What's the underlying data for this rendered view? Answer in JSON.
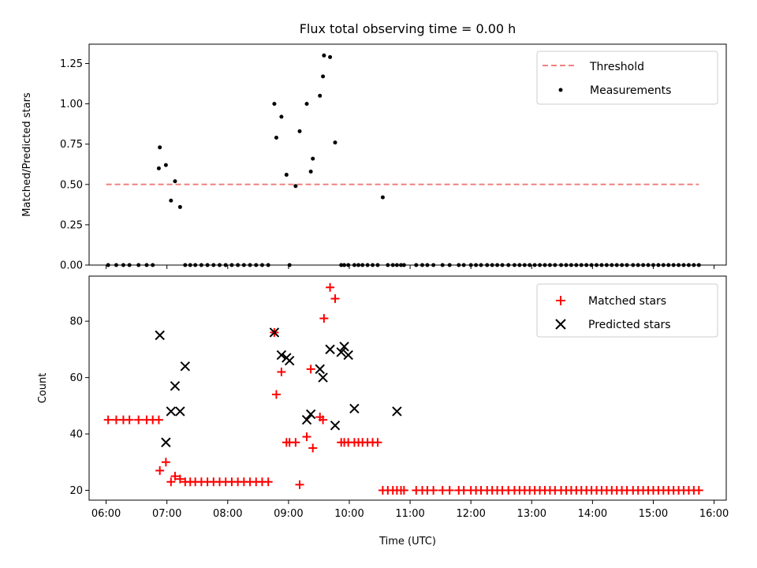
{
  "title": "Flux total observing time = 0.00 h",
  "xlabel": "Time (UTC)",
  "x_ticks": [
    "06:00",
    "07:00",
    "08:00",
    "09:00",
    "10:00",
    "11:00",
    "12:00",
    "13:00",
    "14:00",
    "15:00",
    "16:00"
  ],
  "colors": {
    "threshold": "#f08080",
    "measurement": "#000000",
    "matched": "#ff0000",
    "predicted": "#000000"
  },
  "chart_data": [
    {
      "type": "scatter",
      "ylabel": "Matched/Predicted stars",
      "xlim_hours": [
        5.72,
        16.2
      ],
      "ylim": [
        0,
        1.37
      ],
      "y_ticks": [
        "0.00",
        "0.25",
        "0.50",
        "0.75",
        "1.00",
        "1.25"
      ],
      "y_tick_values": [
        0,
        0.25,
        0.5,
        0.75,
        1.0,
        1.25
      ],
      "legend": {
        "position": "top-right",
        "entries": [
          "Threshold",
          "Measurements"
        ]
      },
      "threshold": {
        "name": "Threshold",
        "y": 0.5,
        "x_range": [
          "06:00",
          "15:45"
        ]
      },
      "series": [
        {
          "name": "Measurements",
          "x": [
            "06:02",
            "06:10",
            "06:17",
            "06:23",
            "06:32",
            "06:40",
            "06:46",
            "06:52",
            "06:53",
            "06:59",
            "07:04",
            "07:08",
            "07:13",
            "07:18",
            "07:23",
            "07:28",
            "07:34",
            "07:40",
            "07:46",
            "07:52",
            "07:58",
            "08:04",
            "08:10",
            "08:16",
            "08:22",
            "08:28",
            "08:34",
            "08:40",
            "08:46",
            "08:48",
            "08:53",
            "08:58",
            "09:01",
            "09:07",
            "09:11",
            "09:18",
            "09:22",
            "09:24",
            "09:31",
            "09:34",
            "09:35",
            "09:41",
            "09:46",
            "09:52",
            "09:55",
            "09:59",
            "10:05",
            "10:09",
            "10:13",
            "10:18",
            "10:23",
            "10:28",
            "10:33",
            "10:38",
            "10:43",
            "10:47",
            "10:51",
            "10:54",
            "11:06",
            "11:12",
            "11:17",
            "11:23",
            "11:32",
            "11:39",
            "11:48",
            "11:53",
            "12:00",
            "12:05",
            "12:10",
            "12:16",
            "12:21",
            "12:26",
            "12:31",
            "12:37",
            "12:43",
            "12:48",
            "12:53",
            "12:58",
            "13:03",
            "13:08",
            "13:13",
            "13:18",
            "13:23",
            "13:29",
            "13:34",
            "13:39",
            "13:44",
            "13:49",
            "13:54",
            "13:59",
            "14:04",
            "14:09",
            "14:14",
            "14:19",
            "14:24",
            "14:29",
            "14:34",
            "14:40",
            "14:45",
            "14:50",
            "14:55",
            "15:00",
            "15:05",
            "15:10",
            "15:15",
            "15:20",
            "15:25",
            "15:30",
            "15:35",
            "15:40",
            "15:45"
          ],
          "y": [
            0,
            0,
            0,
            0,
            0,
            0,
            0,
            0.6,
            0.73,
            0.62,
            0.4,
            0.52,
            0.36,
            0,
            0,
            0,
            0,
            0,
            0,
            0,
            0,
            0,
            0,
            0,
            0,
            0,
            0,
            0,
            1.0,
            0.79,
            0.92,
            0.56,
            0,
            0.49,
            0.83,
            1.0,
            0.58,
            0.66,
            1.05,
            1.17,
            1.3,
            1.29,
            0.76,
            0,
            0,
            0,
            0,
            0,
            0,
            0,
            0,
            0,
            0.42,
            0,
            0,
            0,
            0,
            0,
            0,
            0,
            0,
            0,
            0,
            0,
            0,
            0,
            0,
            0,
            0,
            0,
            0,
            0,
            0,
            0,
            0,
            0,
            0,
            0,
            0,
            0,
            0,
            0,
            0,
            0,
            0,
            0,
            0,
            0,
            0,
            0,
            0,
            0,
            0,
            0,
            0,
            0,
            0,
            0,
            0,
            0,
            0,
            0,
            0,
            0,
            0,
            0,
            0,
            0,
            0,
            0,
            0
          ]
        }
      ]
    },
    {
      "type": "scatter",
      "ylabel": "Count",
      "xlim_hours": [
        5.72,
        16.2
      ],
      "ylim": [
        16.5,
        96
      ],
      "y_ticks": [
        "20",
        "40",
        "60",
        "80"
      ],
      "y_tick_values": [
        20,
        40,
        60,
        80
      ],
      "legend": {
        "position": "top-right",
        "entries": [
          "Matched stars",
          "Predicted stars"
        ]
      },
      "series": [
        {
          "name": "Matched stars",
          "x": [
            "06:02",
            "06:10",
            "06:17",
            "06:23",
            "06:32",
            "06:40",
            "06:46",
            "06:52",
            "06:53",
            "06:59",
            "07:04",
            "07:08",
            "07:13",
            "07:18",
            "07:23",
            "07:28",
            "07:34",
            "07:40",
            "07:46",
            "07:52",
            "07:58",
            "08:04",
            "08:10",
            "08:16",
            "08:22",
            "08:28",
            "08:34",
            "08:40",
            "08:46",
            "08:48",
            "08:53",
            "08:58",
            "09:01",
            "09:07",
            "09:11",
            "09:18",
            "09:22",
            "09:24",
            "09:31",
            "09:34",
            "09:35",
            "09:41",
            "09:46",
            "09:52",
            "09:55",
            "09:59",
            "10:05",
            "10:09",
            "10:13",
            "10:18",
            "10:23",
            "10:28",
            "10:33",
            "10:38",
            "10:43",
            "10:47",
            "10:51",
            "10:54",
            "11:06",
            "11:12",
            "11:17",
            "11:23",
            "11:32",
            "11:39",
            "11:48",
            "11:53",
            "12:00",
            "12:05",
            "12:10",
            "12:16",
            "12:21",
            "12:26",
            "12:31",
            "12:37",
            "12:43",
            "12:48",
            "12:53",
            "12:58",
            "13:03",
            "13:08",
            "13:13",
            "13:18",
            "13:23",
            "13:29",
            "13:34",
            "13:39",
            "13:44",
            "13:49",
            "13:54",
            "13:59",
            "14:04",
            "14:09",
            "14:14",
            "14:19",
            "14:24",
            "14:29",
            "14:34",
            "14:40",
            "14:45",
            "14:50",
            "14:55",
            "15:00",
            "15:05",
            "15:10",
            "15:15",
            "15:20",
            "15:25",
            "15:30",
            "15:35",
            "15:40",
            "15:45"
          ],
          "y": [
            45,
            45,
            45,
            45,
            45,
            45,
            45,
            45,
            27,
            30,
            23,
            25,
            24,
            23,
            23,
            23,
            23,
            23,
            23,
            23,
            23,
            23,
            23,
            23,
            23,
            23,
            23,
            23,
            76,
            54,
            62,
            37,
            37,
            37,
            22,
            39,
            63,
            35,
            46,
            45,
            81,
            92,
            88,
            37,
            37,
            37,
            37,
            37,
            37,
            37,
            37,
            37,
            20,
            20,
            20,
            20,
            20,
            20,
            20,
            20,
            20,
            20,
            20,
            20,
            20,
            20,
            20,
            20,
            20,
            20,
            20,
            20,
            20,
            20,
            20,
            20,
            20,
            20,
            20,
            20,
            20,
            20,
            20,
            20,
            20,
            20,
            20,
            20,
            20,
            20,
            20,
            20,
            20,
            20,
            20,
            20,
            20,
            20,
            20,
            20,
            20,
            20,
            20,
            20,
            20,
            20,
            20,
            20,
            20,
            20,
            20
          ]
        },
        {
          "name": "Predicted stars",
          "x": [
            "06:53",
            "06:59",
            "07:04",
            "07:08",
            "07:13",
            "07:18",
            "08:46",
            "08:53",
            "08:58",
            "09:01",
            "09:18",
            "09:22",
            "09:31",
            "09:34",
            "09:41",
            "09:46",
            "09:52",
            "09:55",
            "09:59",
            "10:05",
            "10:47"
          ],
          "y": [
            75,
            37,
            48,
            57,
            48,
            64,
            76,
            68,
            67,
            66,
            45,
            47,
            63,
            60,
            70,
            43,
            69,
            71,
            68,
            49,
            48
          ]
        }
      ]
    }
  ]
}
